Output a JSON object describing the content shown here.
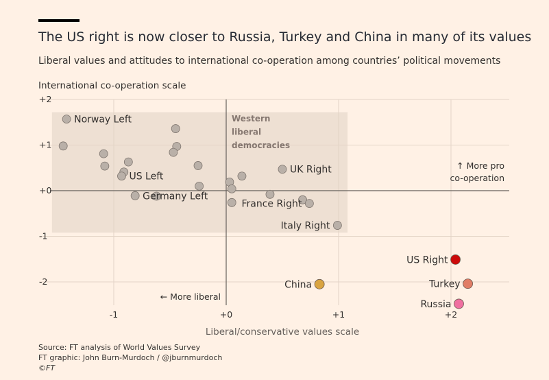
{
  "header": {
    "title": "The US right is now closer to Russia, Turkey and China in many of its values",
    "subtitle": "Liberal values and attitudes to international co-operation among countries’ political movements"
  },
  "footer": {
    "source": "Source: FT analysis of World Values Survey",
    "graphic": "FT graphic: John Burn-Murdoch / @jburnmurdoch",
    "copyright": "©FT"
  },
  "colors": {
    "background": "#fff1e5",
    "grey_point": "#b9b0a8",
    "us_right": "#cc0a0a",
    "turkey": "#e07d66",
    "russia": "#ef6fa0",
    "china": "#d9a441",
    "western_box": "#eee0d3"
  },
  "chart_data": {
    "type": "scatter",
    "title": "The US right is now closer to Russia, Turkey and China in many of its values",
    "subtitle": "Liberal values and attitudes to international co-operation among countries’ political movements",
    "xlabel": "Liberal/conservative values scale",
    "ylabel": "International co-operation scale",
    "xlim": [
      -1.6,
      2.5
    ],
    "ylim": [
      -2.5,
      2.0
    ],
    "x_ticks": [
      {
        "value": -1,
        "label": "-1"
      },
      {
        "value": 0,
        "label": "+0"
      },
      {
        "value": 1,
        "label": "+1"
      },
      {
        "value": 2,
        "label": "+2"
      }
    ],
    "y_ticks": [
      {
        "value": 2,
        "label": "+2"
      },
      {
        "value": 1,
        "label": "+1"
      },
      {
        "value": 0,
        "label": "+0"
      },
      {
        "value": -1,
        "label": "-1"
      },
      {
        "value": -2,
        "label": "-2"
      }
    ],
    "grid": true,
    "annotations": {
      "western_box": {
        "label_lines": [
          "Western",
          "liberal",
          "democracies"
        ],
        "x_range": [
          -1.55,
          1.08
        ],
        "y_range": [
          -0.92,
          1.72
        ]
      },
      "more_pro_lines": [
        "↑ More pro",
        "co-operation"
      ],
      "more_liberal": "← More liberal"
    },
    "points": [
      {
        "x": -1.42,
        "y": 1.57,
        "label": "Norway Left",
        "group": "western"
      },
      {
        "x": -1.45,
        "y": 0.98,
        "label": "",
        "group": "western"
      },
      {
        "x": -1.09,
        "y": 0.81,
        "label": "",
        "group": "western"
      },
      {
        "x": -1.08,
        "y": 0.54,
        "label": "",
        "group": "western"
      },
      {
        "x": -0.87,
        "y": 0.63,
        "label": "",
        "group": "western"
      },
      {
        "x": -0.91,
        "y": 0.41,
        "label": "",
        "group": "western"
      },
      {
        "x": -0.93,
        "y": 0.32,
        "label": "US Left",
        "group": "western"
      },
      {
        "x": -0.45,
        "y": 1.36,
        "label": "",
        "group": "western"
      },
      {
        "x": -0.44,
        "y": 0.97,
        "label": "",
        "group": "western"
      },
      {
        "x": -0.47,
        "y": 0.84,
        "label": "",
        "group": "western"
      },
      {
        "x": -0.25,
        "y": 0.55,
        "label": "",
        "group": "western"
      },
      {
        "x": -0.24,
        "y": 0.1,
        "label": "",
        "group": "western"
      },
      {
        "x": -0.81,
        "y": -0.11,
        "label": "Germany Left",
        "group": "western"
      },
      {
        "x": -0.62,
        "y": -0.12,
        "label": "",
        "group": "western"
      },
      {
        "x": 0.03,
        "y": 0.19,
        "label": "",
        "group": "western"
      },
      {
        "x": 0.05,
        "y": 0.04,
        "label": "",
        "group": "western"
      },
      {
        "x": 0.14,
        "y": 0.32,
        "label": "",
        "group": "western"
      },
      {
        "x": 0.05,
        "y": -0.26,
        "label": "",
        "group": "western"
      },
      {
        "x": 0.5,
        "y": 0.47,
        "label": "UK Right",
        "group": "western"
      },
      {
        "x": 0.39,
        "y": -0.08,
        "label": "",
        "group": "western"
      },
      {
        "x": 0.68,
        "y": -0.2,
        "label": "",
        "group": "western"
      },
      {
        "x": 0.74,
        "y": -0.28,
        "label": "France Right",
        "group": "western"
      },
      {
        "x": 0.99,
        "y": -0.76,
        "label": "Italy Right",
        "group": "western"
      },
      {
        "x": 2.04,
        "y": -1.51,
        "label": "US Right",
        "group": "us_right"
      },
      {
        "x": 2.15,
        "y": -2.04,
        "label": "Turkey",
        "group": "turkey"
      },
      {
        "x": 2.07,
        "y": -2.48,
        "label": "Russia",
        "group": "russia"
      },
      {
        "x": 0.83,
        "y": -2.05,
        "label": "China",
        "group": "china"
      }
    ]
  }
}
